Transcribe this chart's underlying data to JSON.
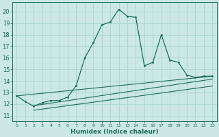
{
  "xlabel": "Humidex (Indice chaleur)",
  "bg_color": "#cce8e5",
  "grid_color": "#b0d8d5",
  "line_color": "#1a6b5a",
  "xlim": [
    -0.5,
    23.5
  ],
  "ylim": [
    10.5,
    20.8
  ],
  "xticks": [
    0,
    1,
    2,
    3,
    4,
    5,
    6,
    7,
    8,
    9,
    10,
    11,
    12,
    13,
    14,
    15,
    16,
    17,
    18,
    19,
    20,
    21,
    22,
    23
  ],
  "yticks": [
    11,
    12,
    13,
    14,
    15,
    16,
    17,
    18,
    19,
    20
  ],
  "main_line_x": [
    0,
    1,
    2,
    3,
    4,
    5,
    6,
    7,
    8,
    9,
    10,
    11,
    12,
    13,
    14,
    15,
    16,
    17,
    18,
    19,
    20,
    21,
    22,
    23
  ],
  "main_line_y": [
    12.7,
    12.2,
    11.8,
    12.1,
    12.3,
    12.3,
    12.6,
    13.6,
    16.0,
    17.3,
    18.85,
    19.1,
    20.2,
    19.6,
    19.5,
    15.3,
    15.6,
    18.0,
    15.8,
    15.6,
    14.5,
    14.3,
    14.4,
    14.4
  ],
  "line2_x": [
    0,
    23
  ],
  "line2_y": [
    12.7,
    14.4
  ],
  "line3_x": [
    2,
    23
  ],
  "line3_y": [
    11.85,
    14.15
  ],
  "line4_x": [
    2,
    23
  ],
  "line4_y": [
    11.45,
    13.55
  ],
  "xticklabels": [
    "0",
    "1",
    "2",
    "3",
    "4",
    "5",
    "6",
    "7",
    "8",
    "9",
    "10",
    "11",
    "12",
    "13",
    "14",
    "15",
    "16",
    "17",
    "18",
    "19",
    "20",
    "21",
    "22",
    "23"
  ]
}
